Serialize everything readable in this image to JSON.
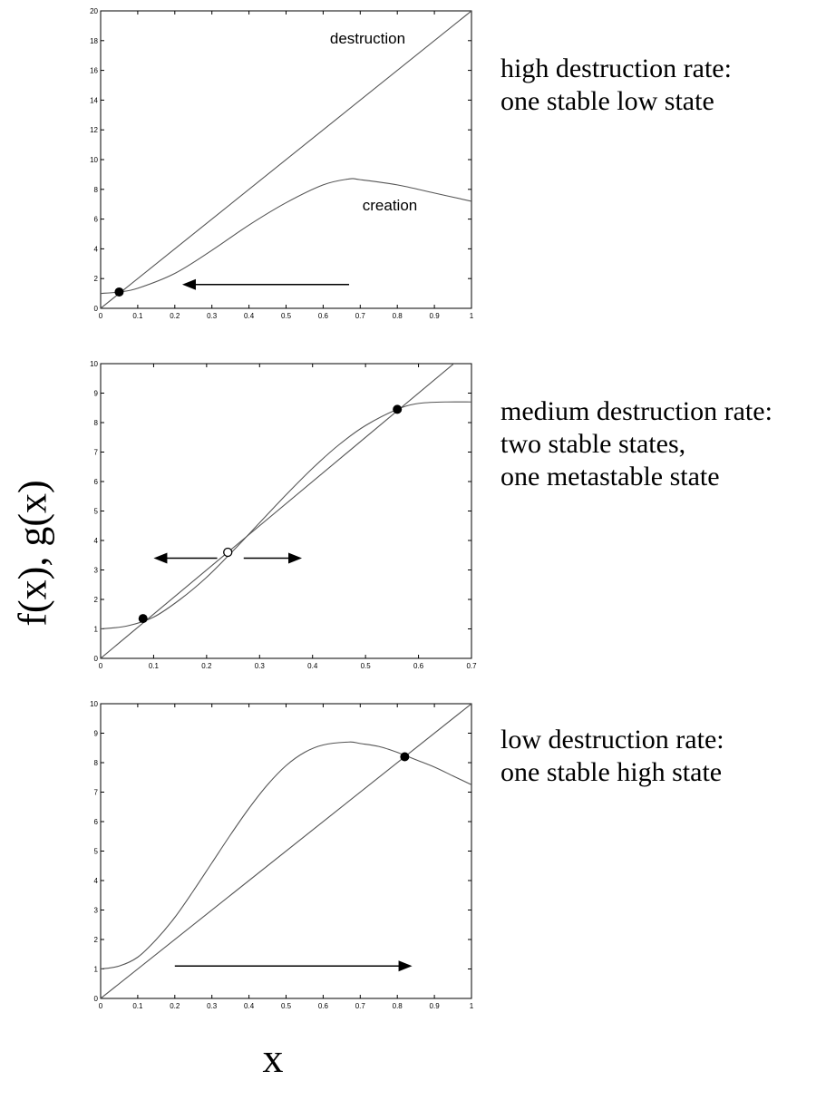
{
  "figure": {
    "ylabel": "f(x), g(x)",
    "xlabel": "x"
  },
  "chart_data": [
    {
      "type": "line",
      "xlim": [
        0,
        1
      ],
      "ylim": [
        0,
        20
      ],
      "xticks": [
        0,
        0.1,
        0.2,
        0.3,
        0.4,
        0.5,
        0.6,
        0.7,
        0.8,
        0.9,
        1
      ],
      "yticks": [
        0,
        2,
        4,
        6,
        8,
        10,
        12,
        14,
        16,
        18,
        20
      ],
      "series": [
        {
          "name": "destruction",
          "x": [
            0,
            1
          ],
          "y": [
            0,
            20
          ]
        },
        {
          "name": "creation",
          "x": [
            0,
            0.05,
            0.1,
            0.2,
            0.3,
            0.4,
            0.5,
            0.6,
            0.67,
            0.7,
            0.8,
            0.9,
            1
          ],
          "y": [
            1.0,
            1.1,
            1.35,
            2.35,
            3.9,
            5.6,
            7.1,
            8.3,
            8.7,
            8.65,
            8.3,
            7.75,
            7.2
          ]
        }
      ],
      "points": [
        {
          "x": 0.05,
          "y": 1.1,
          "filled": true
        }
      ],
      "arrows": [
        {
          "x1": 0.67,
          "x2": 0.22,
          "y": 1.6
        }
      ],
      "annotations": [
        {
          "text": "destruction",
          "x": 0.72,
          "y": 17.8
        },
        {
          "text": "creation",
          "x": 0.78,
          "y": 6.6
        }
      ],
      "description": [
        "high destruction rate:",
        "one stable low state"
      ]
    },
    {
      "type": "line",
      "xlim": [
        0,
        0.7
      ],
      "ylim": [
        0,
        10
      ],
      "xticks": [
        0,
        0.1,
        0.2,
        0.3,
        0.4,
        0.5,
        0.6,
        0.7
      ],
      "yticks": [
        0,
        1,
        2,
        3,
        4,
        5,
        6,
        7,
        8,
        9,
        10
      ],
      "series": [
        {
          "name": "",
          "x": [
            0,
            0.7
          ],
          "y": [
            0,
            10.5
          ]
        },
        {
          "name": "",
          "x": [
            0,
            0.05,
            0.1,
            0.15,
            0.2,
            0.25,
            0.3,
            0.35,
            0.4,
            0.45,
            0.5,
            0.56,
            0.6,
            0.65,
            0.7
          ],
          "y": [
            1.0,
            1.1,
            1.4,
            2.0,
            2.75,
            3.65,
            4.6,
            5.55,
            6.45,
            7.25,
            7.9,
            8.45,
            8.65,
            8.7,
            8.7
          ]
        }
      ],
      "points": [
        {
          "x": 0.08,
          "y": 1.35,
          "filled": true
        },
        {
          "x": 0.24,
          "y": 3.6,
          "filled": false
        },
        {
          "x": 0.56,
          "y": 8.45,
          "filled": true
        }
      ],
      "arrows": [
        {
          "x1": 0.22,
          "x2": 0.1,
          "y": 3.4
        },
        {
          "x1": 0.27,
          "x2": 0.38,
          "y": 3.4
        }
      ],
      "annotations": [],
      "description": [
        "medium destruction rate:",
        "two stable states,",
        "one metastable state"
      ]
    },
    {
      "type": "line",
      "xlim": [
        0,
        1
      ],
      "ylim": [
        0,
        10
      ],
      "xticks": [
        0,
        0.1,
        0.2,
        0.3,
        0.4,
        0.5,
        0.6,
        0.7,
        0.8,
        0.9,
        1
      ],
      "yticks": [
        0,
        1,
        2,
        3,
        4,
        5,
        6,
        7,
        8,
        9,
        10
      ],
      "series": [
        {
          "name": "",
          "x": [
            0,
            1
          ],
          "y": [
            0,
            10
          ]
        },
        {
          "name": "",
          "x": [
            0,
            0.05,
            0.1,
            0.15,
            0.2,
            0.25,
            0.3,
            0.35,
            0.4,
            0.45,
            0.5,
            0.55,
            0.6,
            0.67,
            0.7,
            0.75,
            0.8,
            0.85,
            0.9,
            0.95,
            1
          ],
          "y": [
            1.0,
            1.1,
            1.4,
            2.0,
            2.75,
            3.65,
            4.6,
            5.55,
            6.45,
            7.25,
            7.9,
            8.35,
            8.6,
            8.7,
            8.65,
            8.55,
            8.35,
            8.1,
            7.85,
            7.55,
            7.25
          ]
        }
      ],
      "points": [
        {
          "x": 0.82,
          "y": 8.2,
          "filled": true
        }
      ],
      "arrows": [
        {
          "x1": 0.2,
          "x2": 0.84,
          "y": 1.1
        }
      ],
      "annotations": [],
      "description": [
        "low destruction rate:",
        "one stable high state"
      ]
    }
  ]
}
